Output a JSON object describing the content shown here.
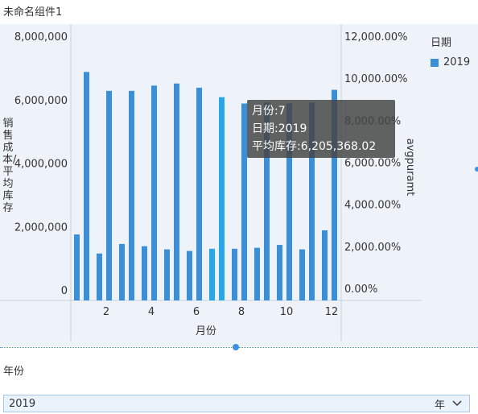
{
  "component_title": "未命名组件1",
  "chart_data": {
    "type": "bar",
    "xlabel": "月份",
    "ylabel_left": "销售成本/平均库存",
    "ylabel_right": "avgpuramt",
    "legend_title": "日期",
    "legend_position": "top-right",
    "categories": [
      1,
      2,
      3,
      4,
      5,
      6,
      7,
      8,
      9,
      10,
      11,
      12
    ],
    "x_ticks": [
      "2",
      "4",
      "6",
      "8",
      "10",
      "12"
    ],
    "y_left_ticks": [
      "0",
      "2,000,000",
      "4,000,000",
      "6,000,000",
      "8,000,000"
    ],
    "y_left_range": [
      -300000,
      8000000
    ],
    "y_right_ticks": [
      "0.00%",
      "2,000.00%",
      "4,000.00%",
      "6,000.00%",
      "8,000.00%",
      "10,000.00%",
      "12,000.00%"
    ],
    "y_right_range": [
      -2000,
      12000
    ],
    "series": [
      {
        "name": "2019",
        "axis": "left",
        "values": [
          1750000,
          1150000,
          1450000,
          1380000,
          1280000,
          1230000,
          1300000,
          1300000,
          1330000,
          1420000,
          1280000,
          1880000
        ]
      },
      {
        "name": "2019",
        "axis": "right",
        "values": [
          10300,
          9400,
          9400,
          9650,
          9750,
          9550,
          9100,
          8800,
          8850,
          8800,
          8850,
          9450
        ]
      }
    ],
    "colors": {
      "bar": "#3a8fd6",
      "highlight": "#29a8e8",
      "axis": "#c9d2dc"
    },
    "grid": false
  },
  "tooltip": {
    "line1": "月份:7",
    "line2": "日期:2019",
    "line3": "平均库存:6,205,368.02"
  },
  "legend": {
    "title": "日期",
    "item": "2019"
  },
  "filter": {
    "label": "年份",
    "selected": "2019",
    "unit": "年"
  }
}
